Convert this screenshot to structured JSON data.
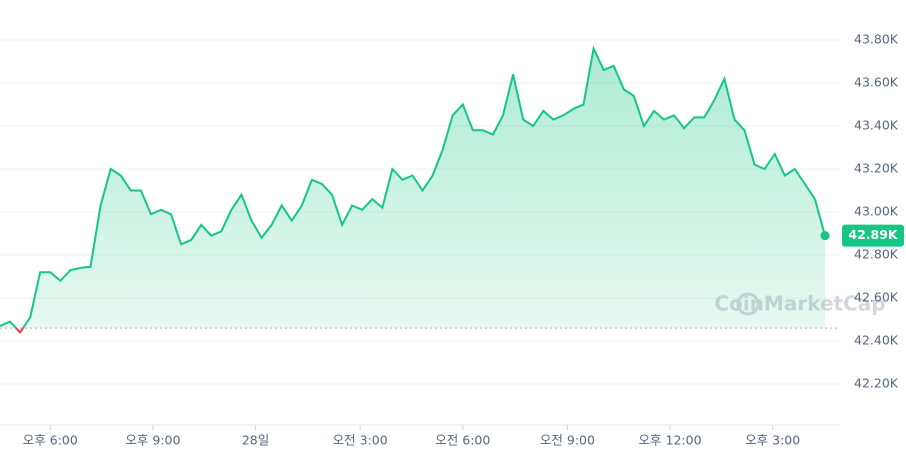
{
  "chart_data": {
    "type": "line",
    "values": [
      42470,
      42490,
      42440,
      42510,
      42720,
      42720,
      42680,
      42730,
      42740,
      42745,
      43030,
      43200,
      43170,
      43100,
      43100,
      42990,
      43010,
      42990,
      42850,
      42870,
      42940,
      42890,
      42910,
      43010,
      43080,
      42960,
      42880,
      42940,
      43030,
      42960,
      43030,
      43150,
      43130,
      43080,
      42940,
      43030,
      43010,
      43060,
      43020,
      43200,
      43150,
      43170,
      43100,
      43170,
      43290,
      43450,
      43500,
      43380,
      43380,
      43360,
      43450,
      43640,
      43430,
      43400,
      43470,
      43430,
      43450,
      43480,
      43500,
      43760,
      43660,
      43680,
      43570,
      43540,
      43400,
      43470,
      43430,
      43450,
      43390,
      43440,
      43440,
      43520,
      43620,
      43430,
      43380,
      43220,
      43200,
      43270,
      43170,
      43200,
      43130,
      43060,
      42890
    ],
    "value_labels": [
      null,
      null,
      null,
      null,
      null,
      null,
      null,
      null,
      null,
      null,
      null,
      null,
      null,
      null,
      null,
      null,
      null,
      null,
      null,
      null,
      null,
      null,
      null,
      null,
      null,
      null,
      null,
      null,
      null,
      null,
      null,
      null,
      null,
      null,
      null,
      null,
      null,
      null,
      null,
      null,
      null,
      null,
      null,
      null,
      null,
      null,
      null,
      null,
      null,
      null,
      null,
      null,
      null,
      null,
      null,
      null,
      null,
      null,
      null,
      null,
      null,
      null,
      null,
      null,
      null,
      null,
      null,
      null,
      null,
      null,
      null,
      null,
      null,
      null,
      null,
      null,
      null,
      null,
      null,
      null,
      null,
      null,
      "42.89K"
    ],
    "color": "#16c784",
    "down_color": "#ea3943",
    "baseline": 42460,
    "ylim": [
      42200,
      43800
    ],
    "yticks": [
      {
        "value": 42200,
        "label": "42.20K"
      },
      {
        "value": 42400,
        "label": "42.40K"
      },
      {
        "value": 42600,
        "label": "42.60K"
      },
      {
        "value": 42800,
        "label": "42.80K"
      },
      {
        "value": 43000,
        "label": "43.00K"
      },
      {
        "value": 43200,
        "label": "43.20K"
      },
      {
        "value": 43400,
        "label": "43.40K"
      },
      {
        "value": 43600,
        "label": "43.60K"
      },
      {
        "value": 43800,
        "label": "43.80K"
      }
    ],
    "xlim": [
      0,
      82
    ],
    "xticks": [
      {
        "value": 5,
        "label": "오후 6:00"
      },
      {
        "value": 15.2,
        "label": "오후 9:00"
      },
      {
        "value": 25.4,
        "label": "28일"
      },
      {
        "value": 35.8,
        "label": "오전 3:00"
      },
      {
        "value": 46,
        "label": "오전 6:00"
      },
      {
        "value": 56.4,
        "label": "오전 9:00"
      },
      {
        "value": 66.6,
        "label": "오후 12:00"
      },
      {
        "value": 76.8,
        "label": "오후 3:00"
      }
    ],
    "grid": true,
    "watermark": "CoinMarketCap"
  }
}
